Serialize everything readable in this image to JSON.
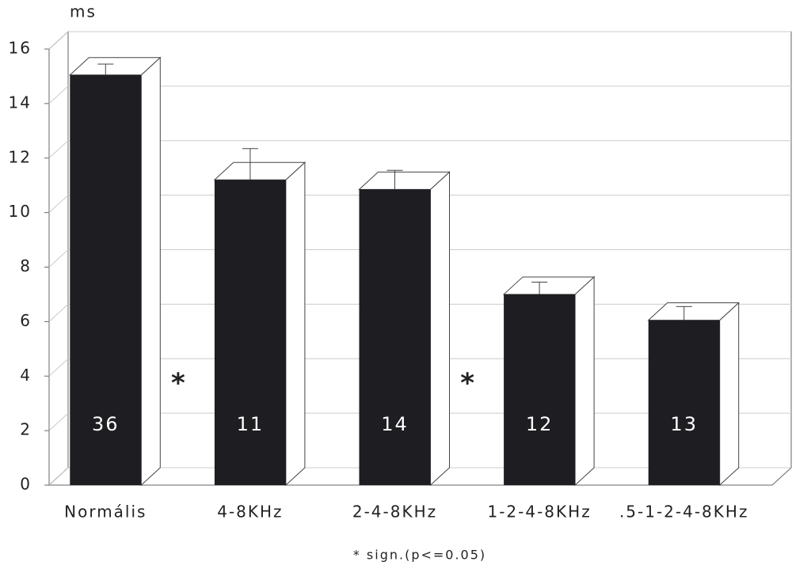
{
  "chart_data": {
    "type": "bar3d",
    "y_label": "ms",
    "categories": [
      "Normális",
      "4-8KHz",
      "2-4-8KHz",
      "1-2-4-8KHz",
      ".5-1-2-4-8KHz"
    ],
    "values": [
      15.05,
      11.2,
      10.85,
      7.0,
      6.05
    ],
    "errors": [
      0.4,
      1.15,
      0.7,
      0.45,
      0.5
    ],
    "bar_labels": [
      "36",
      "11",
      "14",
      "12",
      "13"
    ],
    "significance": [
      null,
      "*",
      null,
      "*",
      null
    ],
    "note": "* sign.(p<=0.05)",
    "color": "#1e1e22",
    "ylim": [
      0,
      16
    ],
    "yticks": [
      0,
      2,
      4,
      6,
      8,
      10,
      12,
      14,
      16
    ],
    "grid": true
  }
}
